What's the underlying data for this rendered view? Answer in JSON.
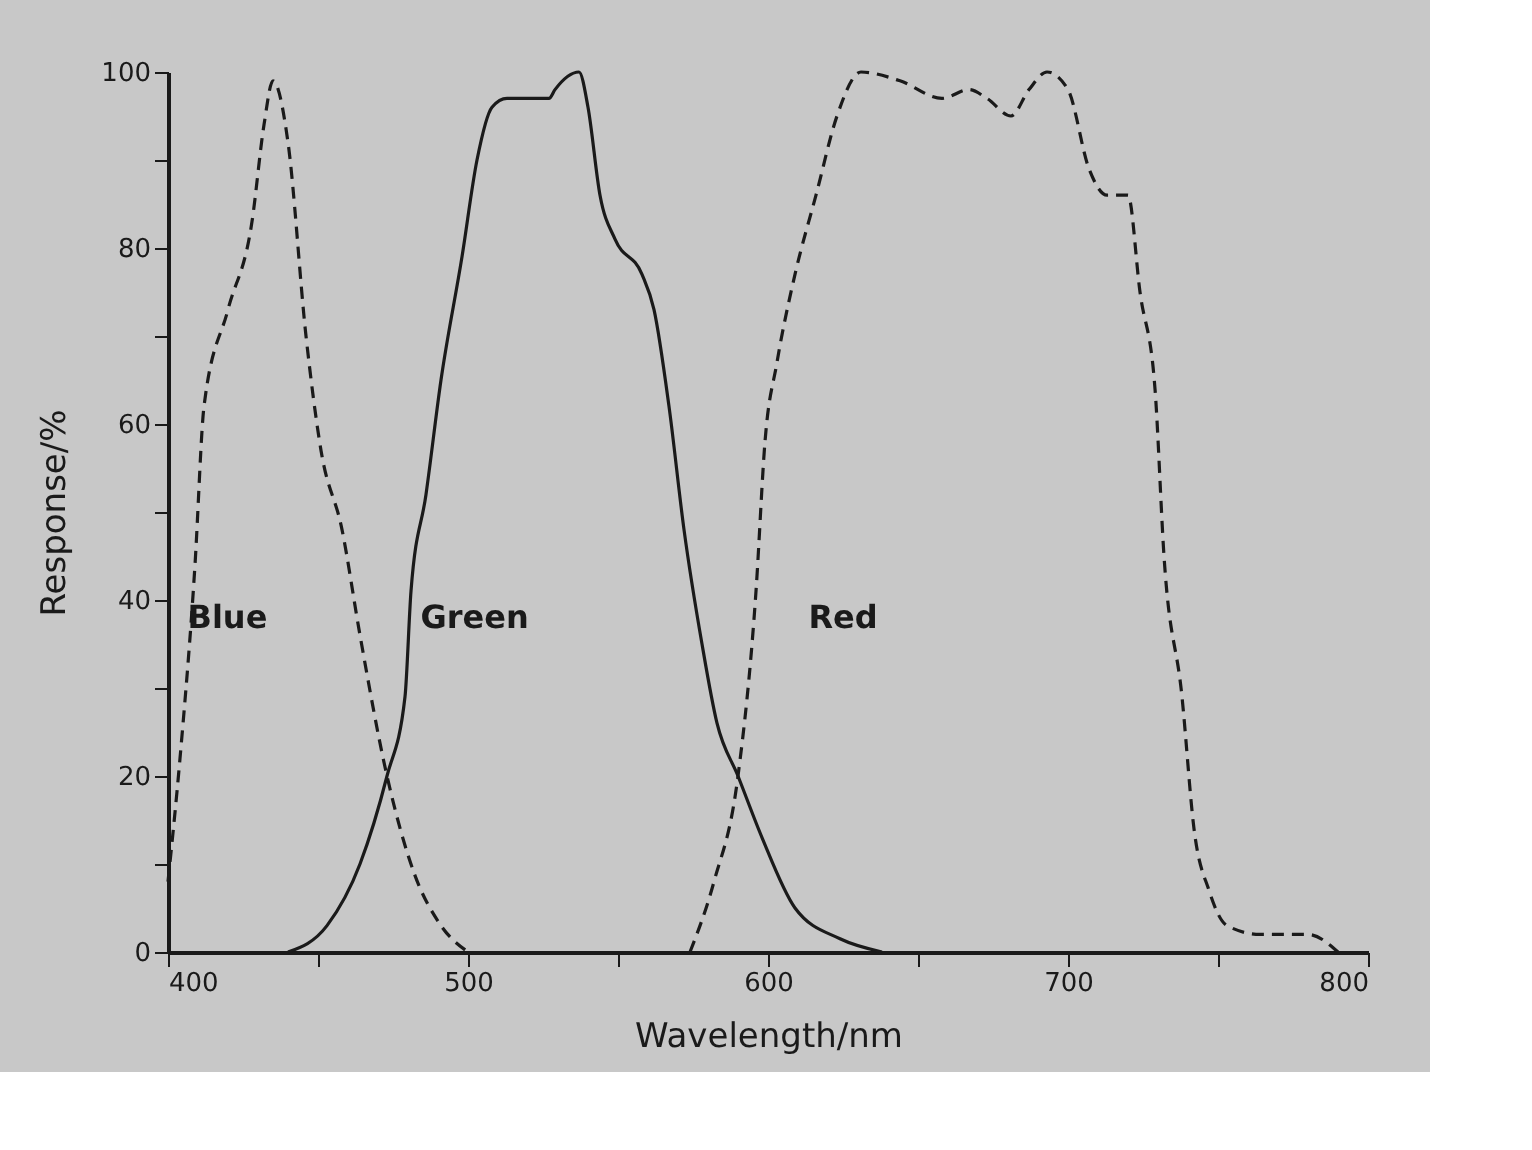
{
  "chart_data": {
    "type": "line",
    "xlabel": "Wavelength/nm",
    "ylabel": "Response/%",
    "xlim": [
      400,
      800
    ],
    "ylim": [
      0,
      100
    ],
    "xticks": [
      400,
      {
        "value": 450,
        "label": null
      },
      500,
      {
        "value": 550,
        "label": null
      },
      600,
      {
        "value": 650,
        "label": null
      },
      700,
      {
        "value": 750,
        "label": null
      },
      800
    ],
    "yticks": [
      0,
      {
        "value": 10,
        "label": null
      },
      20,
      {
        "value": 30,
        "label": null
      },
      40,
      {
        "value": 50,
        "label": null
      },
      60,
      {
        "value": 70,
        "label": null
      },
      80,
      {
        "value": 90,
        "label": null
      },
      100
    ],
    "grid": false,
    "marker": "none",
    "series": [
      {
        "name": "Blue",
        "color": "#1a1a1a",
        "line_style": "dashed",
        "x": [
          400,
          404,
          409,
          412,
          420,
          428,
          432,
          435,
          440,
          446,
          451,
          458,
          464,
          473,
          482,
          491,
          500
        ],
        "values": [
          8,
          22,
          44,
          62,
          73,
          83,
          94,
          99,
          92,
          70,
          57,
          48,
          36,
          20,
          9,
          3,
          0
        ]
      },
      {
        "name": "Green",
        "color": "#1a1a1a",
        "line_style": "solid",
        "x": [
          440,
          453,
          464,
          473,
          479,
          481,
          486,
          491,
          498,
          503,
          508,
          513,
          527,
          529,
          537,
          540,
          544,
          549,
          558,
          562,
          567,
          572,
          578,
          583,
          590,
          598,
          609,
          624,
          638
        ],
        "values": [
          0,
          3,
          10,
          20,
          29,
          41,
          52,
          65,
          79,
          90,
          96,
          97,
          97,
          98,
          100,
          96,
          86,
          81,
          77,
          73,
          62,
          48,
          35,
          26,
          20,
          13,
          5,
          1.5,
          0
        ]
      },
      {
        "name": "Red",
        "color": "#1a1a1a",
        "line_style": "dashed",
        "x": [
          574,
          582,
          590,
          596,
          599,
          603,
          609,
          616,
          623,
          631,
          644,
          658,
          667,
          673,
          681,
          687,
          693,
          700,
          707,
          713,
          720,
          724,
          729,
          732,
          738,
          742,
          747,
          753,
          764,
          780,
          790
        ],
        "values": [
          0,
          8,
          20,
          41,
          58,
          67,
          77,
          86,
          95,
          100,
          99,
          97,
          98,
          97,
          95,
          98,
          100,
          98,
          89,
          86,
          86,
          75,
          64,
          45,
          29,
          14,
          7,
          3,
          2,
          2,
          0
        ]
      }
    ]
  }
}
